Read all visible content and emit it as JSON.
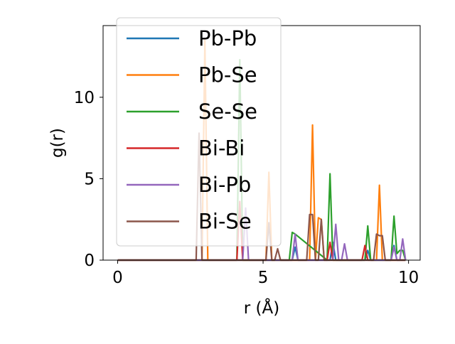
{
  "chart_data": {
    "type": "line",
    "title": "",
    "xlabel": "r (Å)",
    "ylabel": "g(r)",
    "xlim": [
      -0.5,
      10.4
    ],
    "ylim": [
      0,
      14.4
    ],
    "xticks": [
      0,
      5,
      10
    ],
    "yticks": [
      0,
      5,
      10
    ],
    "grid": false,
    "legend": {
      "placement": "upper-left"
    },
    "series": [
      {
        "name": "Pb-Pb",
        "color": "#1f77b4",
        "x": [
          0,
          6.0,
          6.1,
          6.2,
          7.3,
          7.4,
          7.5,
          8.5,
          8.6,
          8.7,
          9.4,
          9.5,
          9.6,
          9.9
        ],
        "y": [
          0,
          0,
          0.8,
          0,
          0,
          1.1,
          0,
          0,
          0.6,
          0,
          0,
          0.9,
          0,
          0
        ]
      },
      {
        "name": "Pb-Se",
        "color": "#ff7f0e",
        "x": [
          0,
          2.9,
          3.0,
          3.1,
          5.1,
          5.2,
          5.3,
          6.6,
          6.7,
          6.8,
          6.9,
          7.0,
          7.1,
          8.9,
          9.0,
          9.1,
          9.9
        ],
        "y": [
          0,
          0,
          13.5,
          0,
          0,
          5.4,
          0,
          0,
          8.3,
          0,
          2.6,
          2.5,
          0,
          0,
          4.6,
          0,
          0
        ]
      },
      {
        "name": "Se-Se",
        "color": "#2ca02c",
        "x": [
          0,
          4.1,
          4.2,
          4.3,
          5.9,
          6.0,
          6.1,
          7.2,
          7.3,
          7.4,
          8.5,
          8.6,
          8.7,
          9.4,
          9.5,
          9.6,
          9.7,
          9.8,
          9.9
        ],
        "y": [
          0,
          0,
          12.3,
          0,
          0,
          1.7,
          1.6,
          0,
          5.3,
          0,
          0,
          2.1,
          0,
          0,
          2.7,
          0.4,
          0.6,
          0.6,
          0
        ]
      },
      {
        "name": "Bi-Bi",
        "color": "#d62728",
        "x": [
          0,
          4.1,
          4.2,
          4.3,
          7.2,
          7.3,
          7.4,
          8.4,
          8.5,
          8.6,
          9.9
        ],
        "y": [
          0,
          0,
          3.6,
          0,
          0,
          1.1,
          0,
          0,
          0.9,
          0,
          0
        ]
      },
      {
        "name": "Bi-Pb",
        "color": "#9467bd",
        "x": [
          0,
          4.3,
          4.4,
          4.5,
          6.0,
          6.1,
          6.2,
          7.4,
          7.5,
          7.6,
          7.7,
          7.8,
          7.9,
          9.4,
          9.5,
          9.6,
          9.7,
          9.8,
          9.9
        ],
        "y": [
          0,
          0,
          3.2,
          0,
          0,
          1.6,
          0,
          0,
          2.2,
          0,
          0,
          1.0,
          0,
          0,
          0.8,
          0,
          0,
          1.3,
          0
        ]
      },
      {
        "name": "Bi-Se",
        "color": "#8c564b",
        "x": [
          0,
          2.7,
          2.8,
          2.9,
          5.1,
          5.2,
          5.3,
          5.4,
          5.5,
          5.6,
          6.5,
          6.6,
          6.7,
          6.8,
          6.9,
          7.0,
          7.1,
          8.8,
          8.9,
          9.0,
          9.1,
          9.2,
          9.9
        ],
        "y": [
          0,
          0,
          7.8,
          0,
          0,
          2.3,
          0,
          0,
          0.7,
          0,
          0,
          2.8,
          2.8,
          0,
          0,
          2.5,
          0,
          0,
          1.6,
          1.5,
          1.5,
          0,
          0
        ]
      }
    ]
  }
}
